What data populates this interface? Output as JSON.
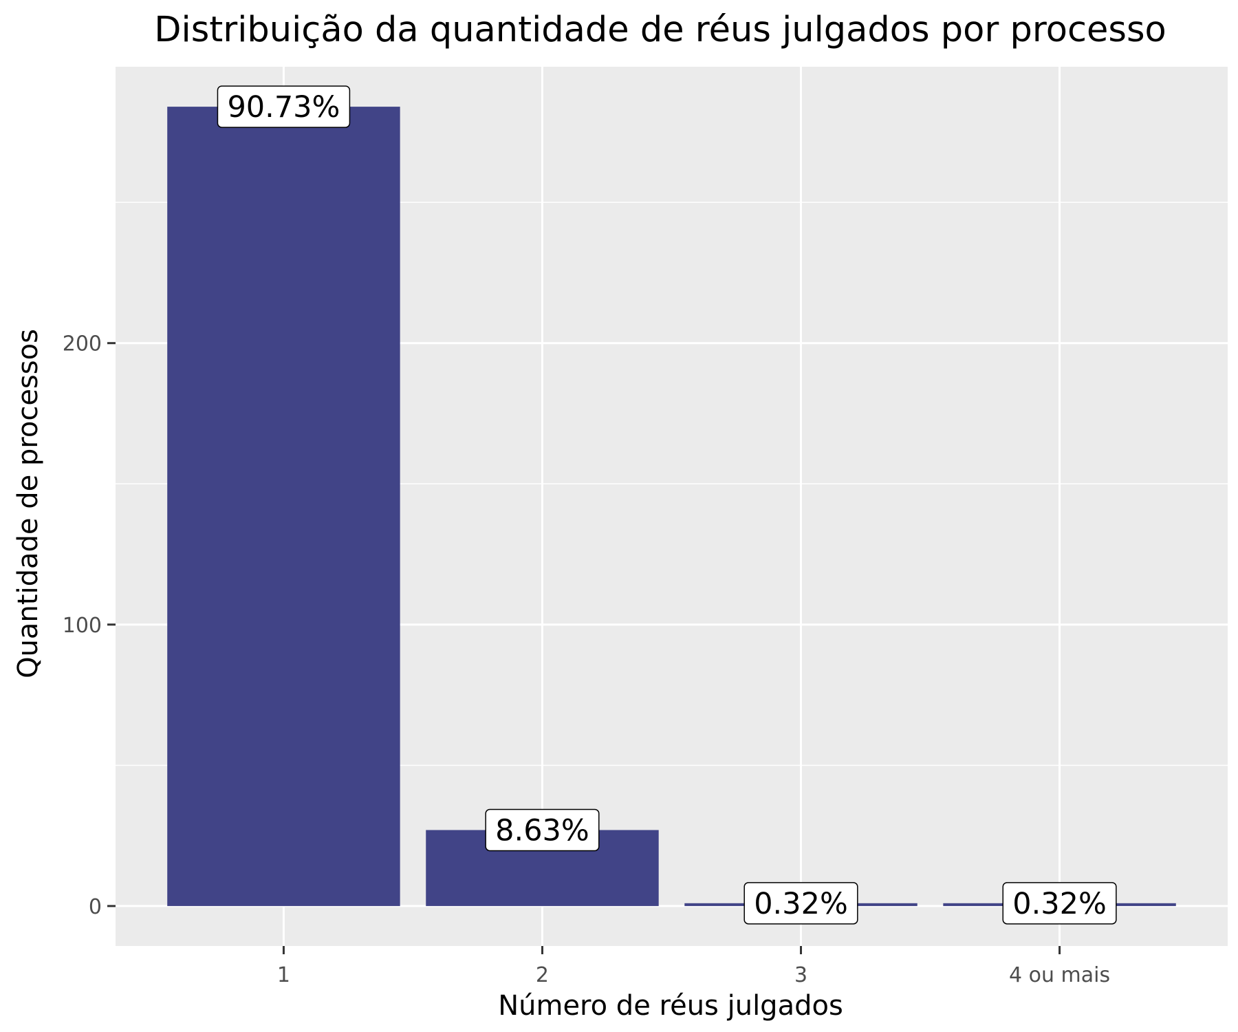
{
  "chart_data": {
    "type": "bar",
    "title": "Distribuição da quantidade de réus julgados por processo",
    "xlabel": "Número de réus julgados",
    "ylabel": "Quantidade de processos",
    "categories": [
      "1",
      "2",
      "3",
      "4 ou mais"
    ],
    "values": [
      284,
      27,
      1,
      1
    ],
    "data_labels": [
      "90.73%",
      "8.63%",
      "0.32%",
      "0.32%"
    ],
    "ylim": [
      -14.2,
      298.2
    ],
    "yticks": [
      0,
      100,
      200
    ],
    "ytick_labels": [
      "0",
      "100",
      "200"
    ],
    "grid": true,
    "legend": "none",
    "colors": {
      "bar": "#414487",
      "panel_background": "#ebebeb",
      "grid": "#ffffff",
      "tick": "#333333",
      "label_box_fill": "#ffffff",
      "label_box_border": "#000000"
    }
  }
}
